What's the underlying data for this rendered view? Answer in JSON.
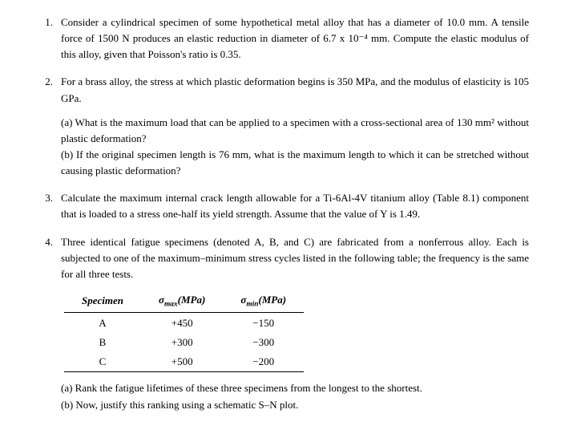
{
  "q1": {
    "num": "1.",
    "text": "Consider a cylindrical specimen of some hypothetical metal alloy that has a diameter of 10.0 mm. A tensile force of 1500 N produces an elastic reduction in diameter of 6.7 x 10⁻⁴ mm. Compute the elastic modulus of this alloy, given that Poisson's ratio is 0.35."
  },
  "q2": {
    "num": "2.",
    "intro": "For a brass alloy, the stress at which plastic deformation begins is 350 MPa, and the modulus of elasticity is 105 GPa.",
    "a": "(a) What is the maximum load that can be applied to a specimen with a cross-sectional area of 130 mm² without plastic deformation?",
    "b": "(b) If the original specimen length is 76 mm, what is the maximum length to which it can be stretched without causing plastic deformation?"
  },
  "q3": {
    "num": "3.",
    "text": "Calculate the maximum internal crack length allowable for a Ti-6Al-4V titanium alloy (Table 8.1) component that is loaded to a stress one-half its yield strength. Assume that the value of Y is 1.49."
  },
  "q4": {
    "num": "4.",
    "intro": "Three identical fatigue specimens (denoted A, B, and C) are fabricated from a nonferrous alloy. Each is subjected to one of the maximum–minimum stress cycles listed in the following table; the frequency is the same for all three tests.",
    "a": "(a) Rank the fatigue lifetimes of these three specimens from the longest to the shortest.",
    "b": "(b) Now, justify this ranking using a schematic S–N plot."
  },
  "table": {
    "headers": {
      "c1": "Specimen",
      "c2": "σₘₐₓ(MPa)",
      "c3": "σₘᵢₙ(MPa)"
    },
    "rows": [
      {
        "c1": "A",
        "c2": "+450",
        "c3": "−150"
      },
      {
        "c1": "B",
        "c2": "+300",
        "c3": "−300"
      },
      {
        "c1": "C",
        "c2": "+500",
        "c3": "−200"
      }
    ]
  }
}
